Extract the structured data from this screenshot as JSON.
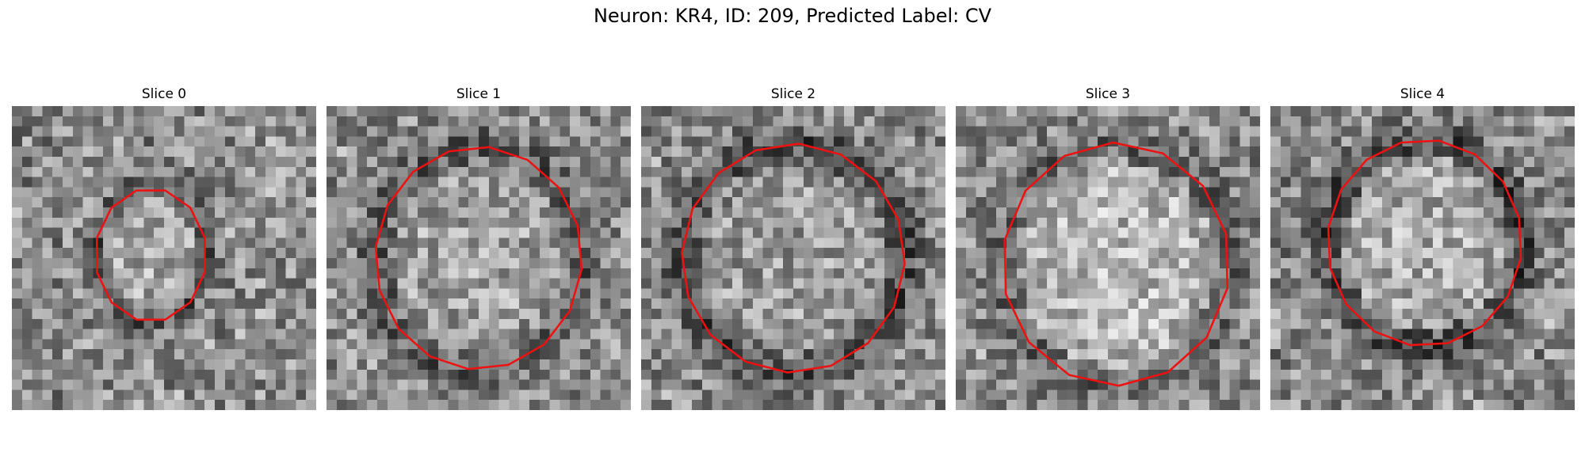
{
  "title": "Neuron: KR4, ID: 209, Predicted Label: CV",
  "colors": {
    "contour": "#ee1111",
    "background": "#ffffff"
  },
  "panels": [
    {
      "title": "Slice 0"
    },
    {
      "title": "Slice 1"
    },
    {
      "title": "Slice 2"
    },
    {
      "title": "Slice 3"
    },
    {
      "title": "Slice 4"
    }
  ]
}
